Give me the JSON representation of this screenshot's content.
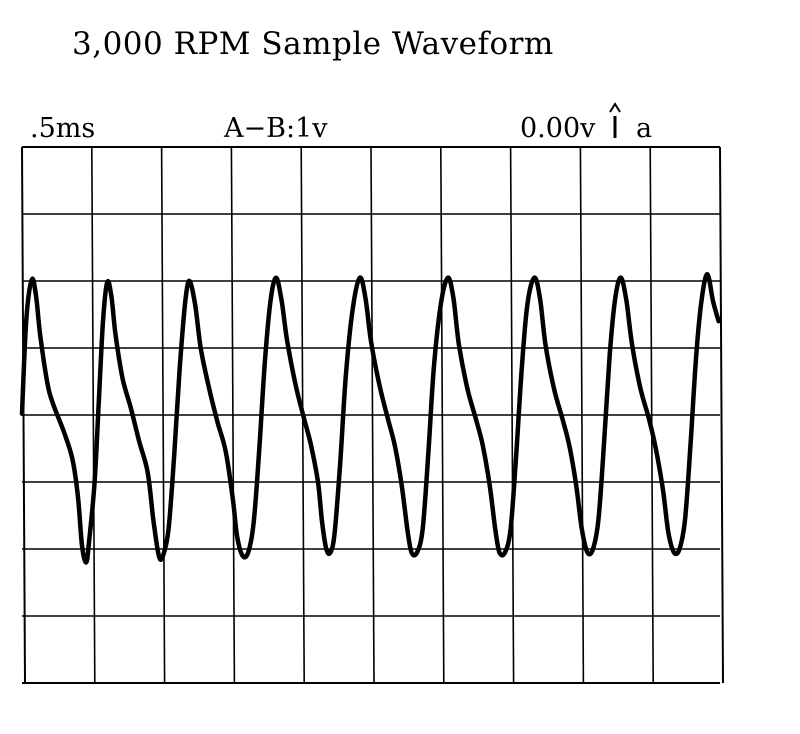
{
  "title": "3,000 RPM Sample Waveform",
  "header": {
    "timebase": ".5ms",
    "volts_div": "A−B:1v",
    "offset": "0.00v",
    "channel": "a"
  },
  "colors": {
    "trace": "#000000",
    "grid": "#000000",
    "background": "#ffffff"
  },
  "chart_data": {
    "type": "line",
    "title": "3,000 RPM Sample Waveform",
    "grid": true,
    "grid_divisions": {
      "x": 10,
      "y": 8
    },
    "x_per_division": 0.5,
    "y_per_division": 1,
    "x_range": [
      0,
      5
    ],
    "y_range": [
      -4,
      4
    ],
    "zero_line_division_from_top": 4,
    "series": [
      {
        "points": [
          [
            0.0,
            0.02
          ],
          [
            0.03,
            1.4
          ],
          [
            0.07,
            2.02
          ],
          [
            0.1,
            1.78
          ],
          [
            0.13,
            1.2
          ],
          [
            0.18,
            0.5
          ],
          [
            0.22,
            0.18
          ],
          [
            0.3,
            -0.25
          ],
          [
            0.36,
            -0.65
          ],
          [
            0.4,
            -1.2
          ],
          [
            0.43,
            -1.95
          ],
          [
            0.46,
            -2.2
          ],
          [
            0.48,
            -1.9
          ],
          [
            0.52,
            -1.0
          ],
          [
            0.55,
            0.2
          ],
          [
            0.58,
            1.4
          ],
          [
            0.61,
            1.98
          ],
          [
            0.64,
            1.78
          ],
          [
            0.67,
            1.2
          ],
          [
            0.72,
            0.55
          ],
          [
            0.78,
            0.1
          ],
          [
            0.84,
            -0.4
          ],
          [
            0.9,
            -0.85
          ],
          [
            0.94,
            -1.55
          ],
          [
            0.98,
            -2.1
          ],
          [
            1.01,
            -2.1
          ],
          [
            1.05,
            -1.7
          ],
          [
            1.09,
            -0.6
          ],
          [
            1.13,
            0.7
          ],
          [
            1.17,
            1.7
          ],
          [
            1.2,
            2.0
          ],
          [
            1.24,
            1.65
          ],
          [
            1.28,
            1.0
          ],
          [
            1.34,
            0.4
          ],
          [
            1.4,
            -0.1
          ],
          [
            1.46,
            -0.55
          ],
          [
            1.51,
            -1.25
          ],
          [
            1.54,
            -1.8
          ],
          [
            1.58,
            -2.1
          ],
          [
            1.62,
            -2.05
          ],
          [
            1.66,
            -1.6
          ],
          [
            1.7,
            -0.5
          ],
          [
            1.74,
            0.8
          ],
          [
            1.78,
            1.7
          ],
          [
            1.82,
            2.05
          ],
          [
            1.86,
            1.7
          ],
          [
            1.9,
            1.1
          ],
          [
            1.96,
            0.45
          ],
          [
            2.02,
            -0.05
          ],
          [
            2.07,
            -0.45
          ],
          [
            2.12,
            -1.0
          ],
          [
            2.15,
            -1.6
          ],
          [
            2.18,
            -2.0
          ],
          [
            2.21,
            -2.05
          ],
          [
            2.24,
            -1.75
          ],
          [
            2.28,
            -0.7
          ],
          [
            2.32,
            0.6
          ],
          [
            2.37,
            1.6
          ],
          [
            2.42,
            2.05
          ],
          [
            2.46,
            1.75
          ],
          [
            2.5,
            1.1
          ],
          [
            2.56,
            0.45
          ],
          [
            2.62,
            -0.05
          ],
          [
            2.67,
            -0.45
          ],
          [
            2.72,
            -1.05
          ],
          [
            2.76,
            -1.7
          ],
          [
            2.79,
            -2.05
          ],
          [
            2.83,
            -2.05
          ],
          [
            2.87,
            -1.7
          ],
          [
            2.91,
            -0.6
          ],
          [
            2.95,
            0.7
          ],
          [
            3.0,
            1.65
          ],
          [
            3.05,
            2.05
          ],
          [
            3.09,
            1.75
          ],
          [
            3.13,
            1.05
          ],
          [
            3.19,
            0.4
          ],
          [
            3.25,
            -0.05
          ],
          [
            3.3,
            -0.45
          ],
          [
            3.35,
            -1.05
          ],
          [
            3.39,
            -1.7
          ],
          [
            3.42,
            -2.05
          ],
          [
            3.46,
            -2.05
          ],
          [
            3.5,
            -1.7
          ],
          [
            3.54,
            -0.6
          ],
          [
            3.58,
            0.7
          ],
          [
            3.62,
            1.65
          ],
          [
            3.67,
            2.05
          ],
          [
            3.71,
            1.75
          ],
          [
            3.75,
            1.05
          ],
          [
            3.81,
            0.4
          ],
          [
            3.87,
            -0.05
          ],
          [
            3.92,
            -0.45
          ],
          [
            3.97,
            -1.05
          ],
          [
            4.01,
            -1.7
          ],
          [
            4.05,
            -2.05
          ],
          [
            4.09,
            -2.0
          ],
          [
            4.13,
            -1.55
          ],
          [
            4.17,
            -0.4
          ],
          [
            4.21,
            0.9
          ],
          [
            4.25,
            1.75
          ],
          [
            4.29,
            2.05
          ],
          [
            4.33,
            1.7
          ],
          [
            4.37,
            1.05
          ],
          [
            4.43,
            0.4
          ],
          [
            4.49,
            -0.05
          ],
          [
            4.54,
            -0.5
          ],
          [
            4.59,
            -1.1
          ],
          [
            4.63,
            -1.75
          ],
          [
            4.67,
            -2.05
          ],
          [
            4.71,
            -2.0
          ],
          [
            4.75,
            -1.55
          ],
          [
            4.79,
            -0.4
          ],
          [
            4.83,
            0.9
          ],
          [
            4.87,
            1.75
          ],
          [
            4.91,
            2.1
          ],
          [
            4.95,
            1.7
          ],
          [
            4.99,
            1.4
          ]
        ]
      }
    ]
  }
}
